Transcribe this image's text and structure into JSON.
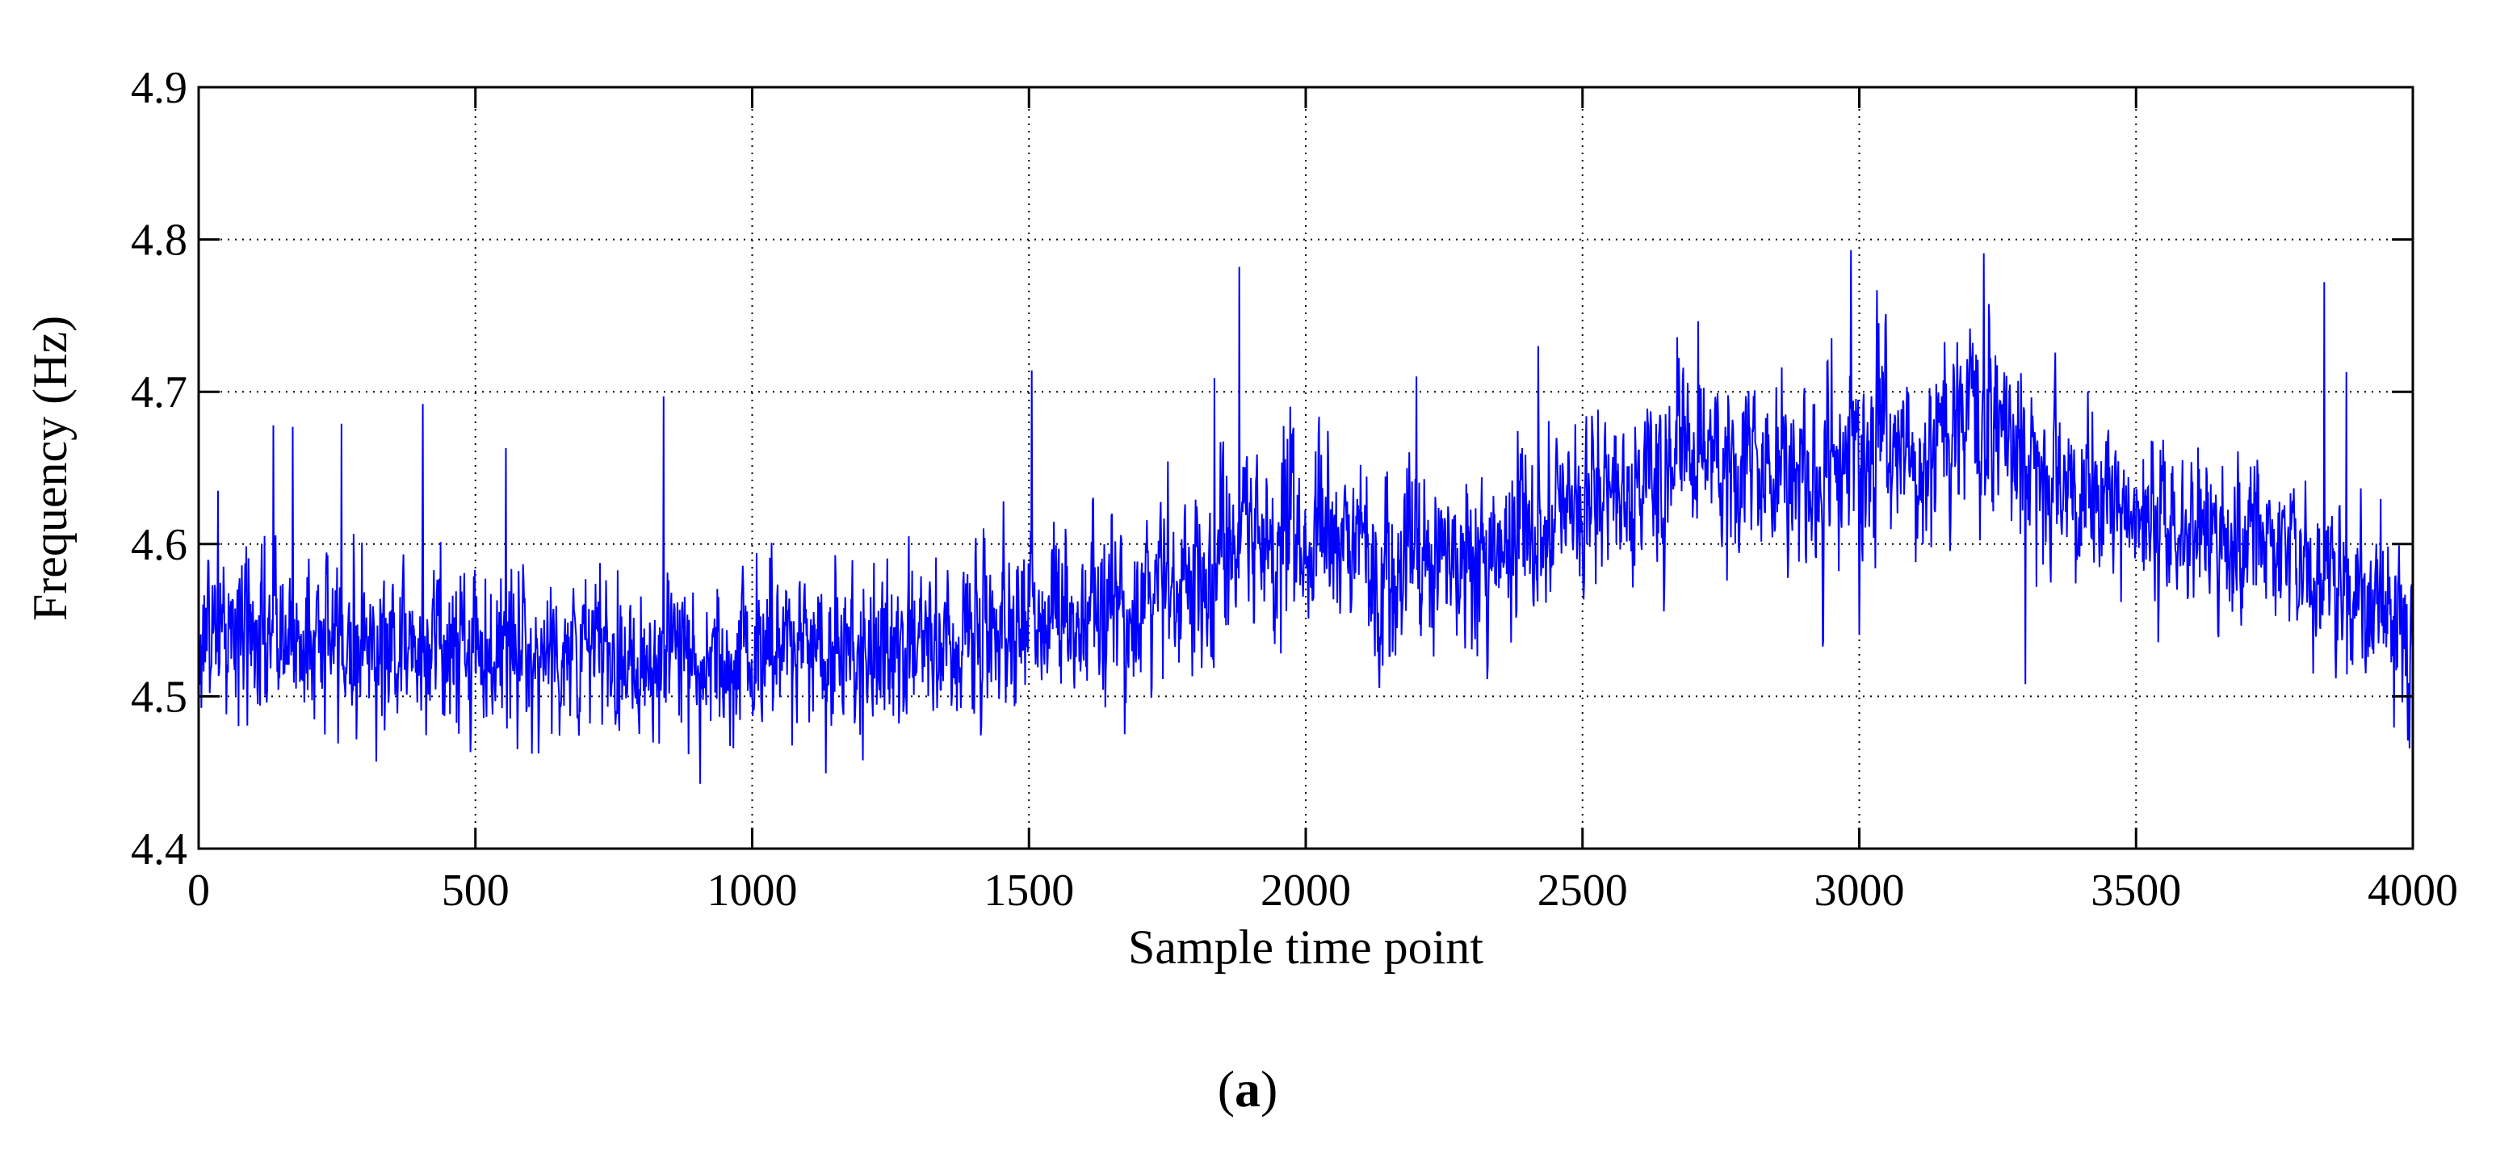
{
  "chart_data": {
    "type": "line",
    "title": "",
    "xlabel": "Sample time point",
    "ylabel": "Frequency (Hz)",
    "xlim": [
      0,
      4000
    ],
    "ylim": [
      4.4,
      4.9
    ],
    "x_ticks": [
      0,
      500,
      1000,
      1500,
      2000,
      2500,
      3000,
      3500,
      4000
    ],
    "y_ticks": [
      4.4,
      4.5,
      4.6,
      4.7,
      4.8,
      4.9
    ],
    "x_tick_labels": [
      "0",
      "500",
      "1000",
      "1500",
      "2000",
      "2500",
      "3000",
      "3500",
      "4000"
    ],
    "y_tick_labels": [
      "4.4",
      "4.5",
      "4.6",
      "4.7",
      "4.8",
      "4.9"
    ],
    "grid": true,
    "grid_style": "dotted",
    "legend": "none",
    "series_color": "#0000ff",
    "n_points": 4000,
    "series": [
      {
        "x": [
          0,
          100,
          200,
          300,
          400,
          500,
          600,
          700,
          800,
          900,
          1000,
          1100,
          1200,
          1300,
          1400,
          1500,
          1600,
          1700,
          1800,
          1900,
          2000,
          2100,
          2200,
          2300,
          2400,
          2500,
          2600,
          2700,
          2800,
          2900,
          3000,
          3100,
          3200,
          3300,
          3400,
          3500,
          3600,
          3700,
          3800,
          3900,
          4000
        ],
        "y_mean": [
          4.545,
          4.54,
          4.538,
          4.535,
          4.535,
          4.532,
          4.53,
          4.528,
          4.528,
          4.525,
          4.528,
          4.535,
          4.53,
          4.528,
          4.545,
          4.555,
          4.555,
          4.56,
          4.58,
          4.6,
          4.6,
          4.595,
          4.59,
          4.585,
          4.615,
          4.625,
          4.64,
          4.655,
          4.648,
          4.65,
          4.67,
          4.64,
          4.7,
          4.65,
          4.63,
          4.62,
          4.605,
          4.6,
          4.59,
          4.56,
          4.535
        ],
        "noise_sd": [
          0.028,
          0.028,
          0.028,
          0.027,
          0.027,
          0.027,
          0.026,
          0.026,
          0.026,
          0.026,
          0.026,
          0.026,
          0.026,
          0.026,
          0.026,
          0.027,
          0.028,
          0.029,
          0.03,
          0.03,
          0.03,
          0.029,
          0.029,
          0.028,
          0.027,
          0.027,
          0.028,
          0.029,
          0.028,
          0.029,
          0.03,
          0.03,
          0.03,
          0.03,
          0.028,
          0.028,
          0.028,
          0.028,
          0.028,
          0.027,
          0.026
        ]
      }
    ],
    "notable_points": [
      {
        "x": 35,
        "y": 4.635
      },
      {
        "x": 135,
        "y": 4.678
      },
      {
        "x": 170,
        "y": 4.677
      },
      {
        "x": 258,
        "y": 4.679
      },
      {
        "x": 405,
        "y": 4.692
      },
      {
        "x": 555,
        "y": 4.663
      },
      {
        "x": 840,
        "y": 4.697
      },
      {
        "x": 885,
        "y": 4.462
      },
      {
        "x": 1200,
        "y": 4.458
      },
      {
        "x": 1505,
        "y": 4.714
      },
      {
        "x": 1880,
        "y": 4.782
      },
      {
        "x": 1835,
        "y": 4.709
      },
      {
        "x": 2200,
        "y": 4.71
      },
      {
        "x": 2420,
        "y": 4.73
      },
      {
        "x": 2985,
        "y": 4.793
      },
      {
        "x": 3035,
        "y": 4.745
      },
      {
        "x": 3225,
        "y": 4.791
      },
      {
        "x": 3300,
        "y": 4.508
      },
      {
        "x": 3840,
        "y": 4.772
      },
      {
        "x": 3880,
        "y": 4.713
      }
    ]
  },
  "caption": {
    "open": "(",
    "letter": "a",
    "close": ")"
  }
}
